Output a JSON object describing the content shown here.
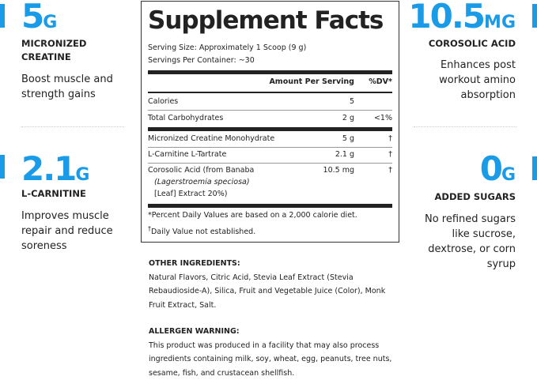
{
  "colors": {
    "accent": "#1a9be8",
    "text": "#222222"
  },
  "left": [
    {
      "value": "5",
      "unit": "G",
      "label_lines": [
        "MICRONIZED",
        "CREATINE"
      ],
      "body_lines": [
        "Boost muscle and",
        "strength gains"
      ]
    },
    {
      "value": "2.1",
      "unit": "G",
      "label_lines": [
        "L-CARNITINE"
      ],
      "body_lines": [
        "Improves muscle",
        "repair and reduce",
        "soreness"
      ]
    }
  ],
  "right": [
    {
      "value": "10.5",
      "unit": "MG",
      "label_lines": [
        "COROSOLIC ACID"
      ],
      "body_lines": [
        "Enhances post",
        "workout amino",
        "absorption"
      ]
    },
    {
      "value": "0",
      "unit": "G",
      "label_lines": [
        "ADDED SUGARS"
      ],
      "body_lines": [
        "No refined sugars",
        "like sucrose,",
        "dextrose, or corn",
        "syrup"
      ]
    }
  ],
  "panel": {
    "title": "Supplement Facts",
    "serving_size": "Serving Size: Approximately 1 Scoop (9 g)",
    "servings_per_container": "Servings Per Container: ~30",
    "header_amount": "Amount Per Serving",
    "header_dv": "%DV*",
    "rows": [
      {
        "name": "Calories",
        "amount": "5",
        "dv": ""
      },
      {
        "name": "Total Carbohydrates",
        "amount": "2 g",
        "dv": "<1%"
      },
      {
        "name": "Micronized Creatine Monohydrate",
        "amount": "5 g",
        "dv": "†"
      },
      {
        "name": "L-Carnitine L-Tartrate",
        "amount": "2.1 g",
        "dv": "†"
      },
      {
        "name": "Corosolic Acid (from Banaba",
        "amount": "10.5 mg",
        "dv": "†"
      }
    ],
    "row_cont_1": "(Lagerstroemia speciosa)",
    "row_cont_2": "[Leaf] Extract 20%)",
    "footnote_1": "*Percent Daily Values are based on a 2,000 calorie diet.",
    "footnote_2_mark": "†",
    "footnote_2": "Daily Value not established."
  },
  "other_ingredients": {
    "heading": "OTHER INGREDIENTS:",
    "text": "Natural Flavors, Citric Acid, Stevia Leaf Extract (Stevia Rebaudioside-A), Silica, Fruit and Vegetable Juice (Color), Monk Fruit Extract, Salt."
  },
  "allergen": {
    "heading": "ALLERGEN WARNING:",
    "text": "This product was produced in a facility that may also process ingredients containing milk, soy, wheat, egg, peanuts, tree nuts, sesame, fish, and crustacean shellfish."
  }
}
